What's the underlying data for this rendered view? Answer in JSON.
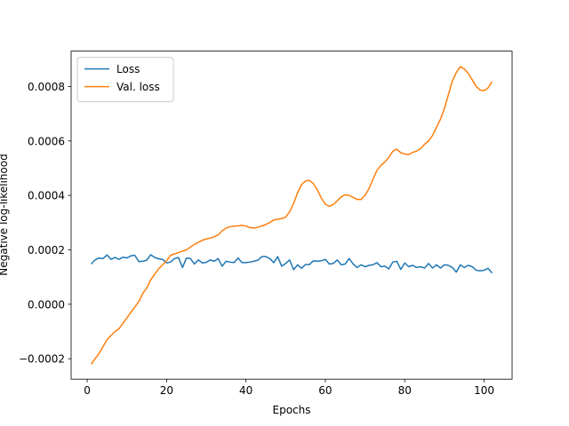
{
  "chart_data": {
    "type": "line",
    "xlabel": "Epochs",
    "ylabel": "Negative log-likelihood",
    "x": [
      1,
      2,
      3,
      4,
      5,
      6,
      7,
      8,
      9,
      10,
      11,
      12,
      13,
      14,
      15,
      16,
      17,
      18,
      19,
      20,
      21,
      22,
      23,
      24,
      25,
      26,
      27,
      28,
      29,
      30,
      31,
      32,
      33,
      34,
      35,
      36,
      37,
      38,
      39,
      40,
      41,
      42,
      43,
      44,
      45,
      46,
      47,
      48,
      49,
      50,
      51,
      52,
      53,
      54,
      55,
      56,
      57,
      58,
      59,
      60,
      61,
      62,
      63,
      64,
      65,
      66,
      67,
      68,
      69,
      70,
      71,
      72,
      73,
      74,
      75,
      76,
      77,
      78,
      79,
      80,
      81,
      82,
      83,
      84,
      85,
      86,
      87,
      88,
      89,
      90,
      91,
      92,
      93,
      94,
      95,
      96,
      97,
      98,
      99,
      100,
      101,
      102
    ],
    "series": [
      {
        "name": "Loss",
        "color": "#1f77b4",
        "values": [
          0.000148,
          0.000163,
          0.00017,
          0.000168,
          0.000181,
          0.000165,
          0.000172,
          0.000165,
          0.000173,
          0.00017,
          0.000178,
          0.00018,
          0.000157,
          0.000158,
          0.000162,
          0.000182,
          0.000172,
          0.000167,
          0.000165,
          0.000152,
          0.000155,
          0.000168,
          0.000172,
          0.000135,
          0.00017,
          0.000168,
          0.000148,
          0.000163,
          0.000152,
          0.000154,
          0.000163,
          0.000158,
          0.000168,
          0.00014,
          0.000158,
          0.000155,
          0.000153,
          0.00017,
          0.000153,
          0.000153,
          0.000155,
          0.000158,
          0.000162,
          0.000175,
          0.000175,
          0.000168,
          0.000153,
          0.000175,
          0.00014,
          0.00015,
          0.000163,
          0.000127,
          0.000145,
          0.000132,
          0.000146,
          0.000146,
          0.00016,
          0.000158,
          0.00016,
          0.000165,
          0.000148,
          0.00015,
          0.000163,
          0.000145,
          0.000148,
          0.000168,
          0.000148,
          0.000135,
          0.000145,
          0.000138,
          0.000143,
          0.000145,
          0.000153,
          0.000138,
          0.00014,
          0.00013,
          0.000155,
          0.000158,
          0.000128,
          0.000152,
          0.000138,
          0.000143,
          0.000135,
          0.000138,
          0.000133,
          0.00015,
          0.000133,
          0.000145,
          0.000133,
          0.000145,
          0.000143,
          0.000135,
          0.000118,
          0.000145,
          0.000135,
          0.000143,
          0.000138,
          0.000125,
          0.000123,
          0.000125,
          0.000132,
          0.000115
        ]
      },
      {
        "name": "Val. loss",
        "color": "#ff7f0e",
        "values": [
          -0.00022,
          -0.0002,
          -0.00018,
          -0.000155,
          -0.00013,
          -0.000115,
          -0.0001,
          -9e-05,
          -7e-05,
          -5e-05,
          -3e-05,
          -1e-05,
          1e-05,
          4e-05,
          6e-05,
          9e-05,
          0.00011,
          0.00013,
          0.000145,
          0.00016,
          0.00018,
          0.000185,
          0.00019,
          0.000195,
          0.0002,
          0.00021,
          0.00022,
          0.000228,
          0.000235,
          0.00024,
          0.000243,
          0.000248,
          0.000255,
          0.00027,
          0.00028,
          0.000285,
          0.000287,
          0.000288,
          0.00029,
          0.000287,
          0.000282,
          0.00028,
          0.000283,
          0.000288,
          0.000293,
          0.0003,
          0.00031,
          0.000312,
          0.000315,
          0.00032,
          0.00034,
          0.00037,
          0.00041,
          0.00044,
          0.000453,
          0.000455,
          0.000443,
          0.00042,
          0.00039,
          0.000368,
          0.00036,
          0.000367,
          0.00038,
          0.000395,
          0.000402,
          0.0004,
          0.000393,
          0.000385,
          0.000385,
          0.0004,
          0.000425,
          0.00046,
          0.000492,
          0.00051,
          0.000523,
          0.00054,
          0.000562,
          0.00057,
          0.000557,
          0.000552,
          0.00055,
          0.000558,
          0.000563,
          0.000572,
          0.000588,
          0.0006,
          0.00062,
          0.00065,
          0.00068,
          0.00072,
          0.00077,
          0.00082,
          0.000852,
          0.000873,
          0.000865,
          0.000848,
          0.000825,
          0.0008,
          0.000787,
          0.000785,
          0.000795,
          0.000818
        ]
      }
    ],
    "xlim": [
      -4.05,
      107.05
    ],
    "xticks": [
      0,
      20,
      40,
      60,
      80,
      100
    ],
    "ylim": [
      -0.000275,
      0.00093
    ],
    "yticks": [
      {
        "value": -0.0002,
        "label": "−0.0002"
      },
      {
        "value": 0,
        "label": "0.0000"
      },
      {
        "value": 0.0002,
        "label": "0.0002"
      },
      {
        "value": 0.0004,
        "label": "0.0004"
      },
      {
        "value": 0.0006,
        "label": "0.0006"
      },
      {
        "value": 0.0008,
        "label": "0.0008"
      }
    ],
    "legend": "upper left",
    "grid": false
  }
}
